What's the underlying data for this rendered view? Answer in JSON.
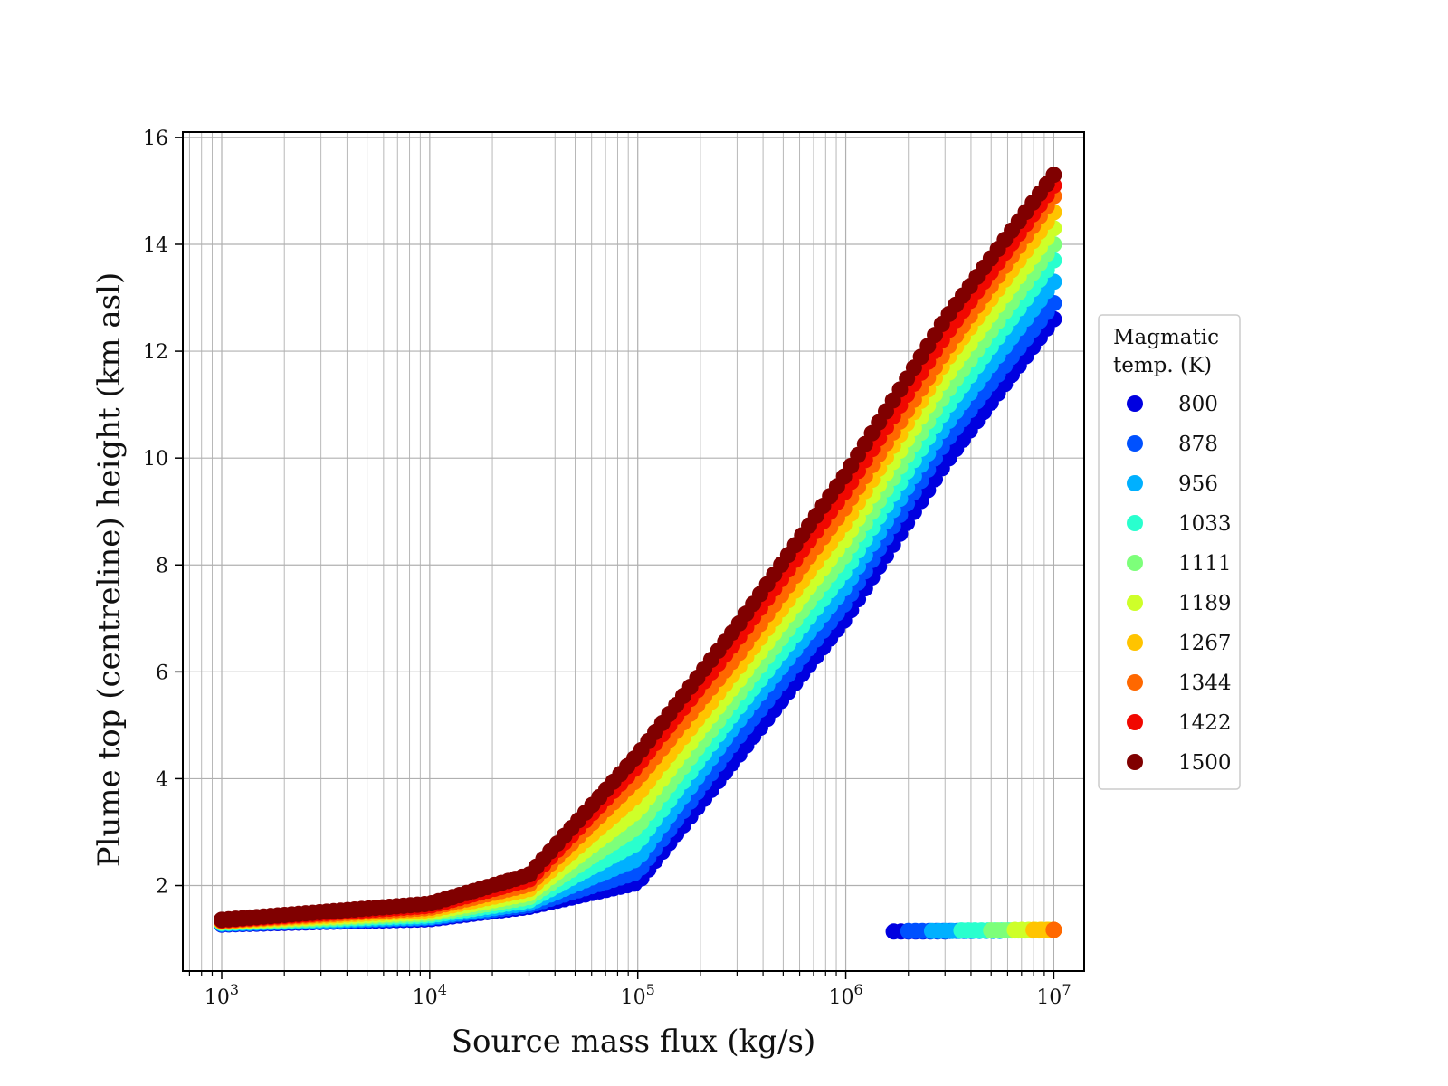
{
  "chart_data": {
    "type": "scatter",
    "title": "",
    "xlabel": "Source mass flux (kg/s)",
    "ylabel": "Plume top (centreline) height (km asl)",
    "xscale": "log",
    "xlim": [
      650,
      14000000
    ],
    "ylim": [
      0.4,
      16.1
    ],
    "grid": true,
    "x_ticks": [
      {
        "value": 1000,
        "base": "10",
        "exp": "3"
      },
      {
        "value": 10000,
        "base": "10",
        "exp": "4"
      },
      {
        "value": 100000,
        "base": "10",
        "exp": "5"
      },
      {
        "value": 1000000,
        "base": "10",
        "exp": "6"
      },
      {
        "value": 10000000,
        "base": "10",
        "exp": "7"
      }
    ],
    "y_ticks": [
      "2",
      "4",
      "6",
      "8",
      "10",
      "12",
      "14",
      "16"
    ],
    "legend": {
      "title_lines": [
        "Magmatic",
        "temp. (K)"
      ],
      "placement": "outside right",
      "entries": [
        "800",
        "878",
        "956",
        "1033",
        "1111",
        "1189",
        "1267",
        "1344",
        "1422",
        "1500"
      ]
    },
    "series": [
      {
        "name": "800",
        "color": "#0000e0",
        "x": [
          1000,
          10000,
          30000,
          100000,
          300000,
          1000000,
          3000000,
          10000000
        ],
        "y": [
          1.27,
          1.37,
          1.6,
          2.05,
          4.4,
          7.0,
          9.9,
          12.6
        ],
        "collapsed": {
          "x": [
            1700000,
            3000000
          ],
          "y": [
            1.14,
            1.14
          ]
        }
      },
      {
        "name": "878",
        "color": "#0051ff",
        "x": [
          1000,
          10000,
          30000,
          100000,
          300000,
          1000000,
          3000000,
          10000000
        ],
        "y": [
          1.28,
          1.39,
          1.63,
          2.25,
          4.75,
          7.3,
          10.3,
          12.9
        ],
        "collapsed": {
          "x": [
            2000000,
            4000000
          ],
          "y": [
            1.15,
            1.15
          ]
        }
      },
      {
        "name": "956",
        "color": "#00b0ff",
        "x": [
          1000,
          10000,
          30000,
          100000,
          300000,
          1000000,
          3000000,
          10000000
        ],
        "y": [
          1.29,
          1.41,
          1.67,
          2.5,
          5.05,
          7.6,
          10.6,
          13.3
        ],
        "collapsed": {
          "x": [
            2600000,
            5500000
          ],
          "y": [
            1.15,
            1.15
          ]
        }
      },
      {
        "name": "1033",
        "color": "#29ffce",
        "x": [
          1000,
          10000,
          30000,
          100000,
          300000,
          1000000,
          3000000,
          10000000
        ],
        "y": [
          1.3,
          1.44,
          1.72,
          2.8,
          5.3,
          7.9,
          10.9,
          13.7
        ],
        "collapsed": {
          "x": [
            3600000,
            7000000
          ],
          "y": [
            1.16,
            1.16
          ]
        }
      },
      {
        "name": "1111",
        "color": "#7dff7a",
        "x": [
          1000,
          10000,
          30000,
          100000,
          300000,
          1000000,
          3000000,
          10000000
        ],
        "y": [
          1.31,
          1.47,
          1.78,
          3.1,
          5.55,
          8.2,
          11.2,
          14.0
        ],
        "collapsed": {
          "x": [
            5000000,
            8500000
          ],
          "y": [
            1.16,
            1.16
          ]
        }
      },
      {
        "name": "1189",
        "color": "#ceff29",
        "x": [
          1000,
          10000,
          30000,
          100000,
          300000,
          1000000,
          3000000,
          10000000
        ],
        "y": [
          1.32,
          1.5,
          1.85,
          3.4,
          5.8,
          8.5,
          11.5,
          14.3
        ],
        "collapsed": {
          "x": [
            6500000,
            9500000
          ],
          "y": [
            1.17,
            1.17
          ]
        }
      },
      {
        "name": "1267",
        "color": "#ffc400",
        "x": [
          1000,
          10000,
          30000,
          100000,
          300000,
          1000000,
          3000000,
          10000000
        ],
        "y": [
          1.33,
          1.54,
          1.93,
          3.7,
          6.05,
          8.8,
          11.8,
          14.6
        ],
        "collapsed": {
          "x": [
            8000000,
            10000000
          ],
          "y": [
            1.17,
            1.17
          ]
        }
      },
      {
        "name": "1344",
        "color": "#ff6800",
        "x": [
          1000,
          10000,
          30000,
          100000,
          300000,
          1000000,
          3000000,
          10000000
        ],
        "y": [
          1.34,
          1.58,
          2.02,
          4.0,
          6.3,
          9.1,
          12.0,
          14.9
        ],
        "collapsed": {
          "x": [
            10000000,
            10000000
          ],
          "y": [
            1.17,
            1.17
          ]
        }
      },
      {
        "name": "1422",
        "color": "#f10800",
        "x": [
          1000,
          10000,
          30000,
          100000,
          300000,
          1000000,
          3000000,
          10000000
        ],
        "y": [
          1.35,
          1.62,
          2.11,
          4.25,
          6.6,
          9.4,
          12.3,
          15.1
        ]
      },
      {
        "name": "1500",
        "color": "#800000",
        "x": [
          1000,
          10000,
          30000,
          100000,
          300000,
          1000000,
          3000000,
          10000000
        ],
        "y": [
          1.36,
          1.66,
          2.2,
          4.45,
          6.85,
          9.7,
          12.6,
          15.3
        ]
      }
    ]
  }
}
